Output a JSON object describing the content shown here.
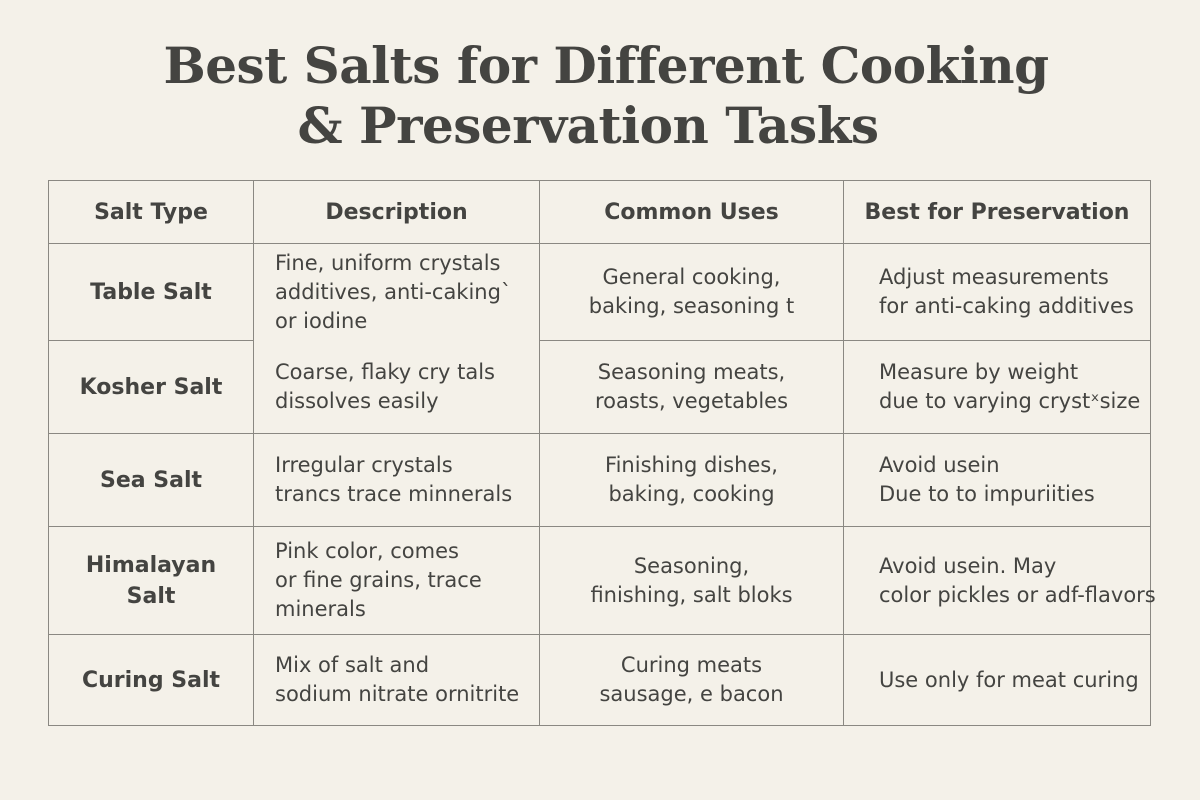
{
  "title": {
    "line1": "Best Salts for Different Cooking",
    "line2": "& Preservation Tasks"
  },
  "table": {
    "headers": [
      "Salt Type",
      "Description",
      "Common Uses",
      "Best for Preservation"
    ],
    "rows": [
      {
        "type": [
          "Table Salt"
        ],
        "description": [
          "Fine, uniform crystals",
          "additives, anti-caking`",
          "or iodine"
        ],
        "uses": [
          "General cooking,",
          "baking, seasoning t"
        ],
        "preservation": [
          "Adjust measurements",
          "for anti-caking additives"
        ]
      },
      {
        "type": [
          "Kosher Salt"
        ],
        "description": [
          "Coarse, flaky cry tals",
          "dissolves easily"
        ],
        "uses": [
          "Seasoning meats,",
          "roasts, vegetables"
        ],
        "preservation": [
          "Measure by weight",
          "due to varying crystˣsize"
        ]
      },
      {
        "type": [
          "Sea Salt"
        ],
        "description": [
          "Irregular crystals",
          "trancs trace minnerals"
        ],
        "uses": [
          "Finishing dishes,",
          "baking, cooking"
        ],
        "preservation": [
          "Avoid usein",
          "Due to to impuriities"
        ]
      },
      {
        "type": [
          "Himalayan",
          "Salt"
        ],
        "description": [
          "Pink color, comes",
          "or fine grains, trace",
          "minerals"
        ],
        "uses": [
          "Seasoning,",
          "finishing, salt bloks"
        ],
        "preservation": [
          "Avoid usein. May",
          "color pickles or adf-flavors"
        ]
      },
      {
        "type": [
          "Curing Salt"
        ],
        "description": [
          "Mix of salt and",
          "sodium nitrate ornitrite"
        ],
        "uses": [
          "Curing meats",
          "sausage, e bacon"
        ],
        "preservation": [
          "Use only for meat curing"
        ]
      }
    ]
  }
}
